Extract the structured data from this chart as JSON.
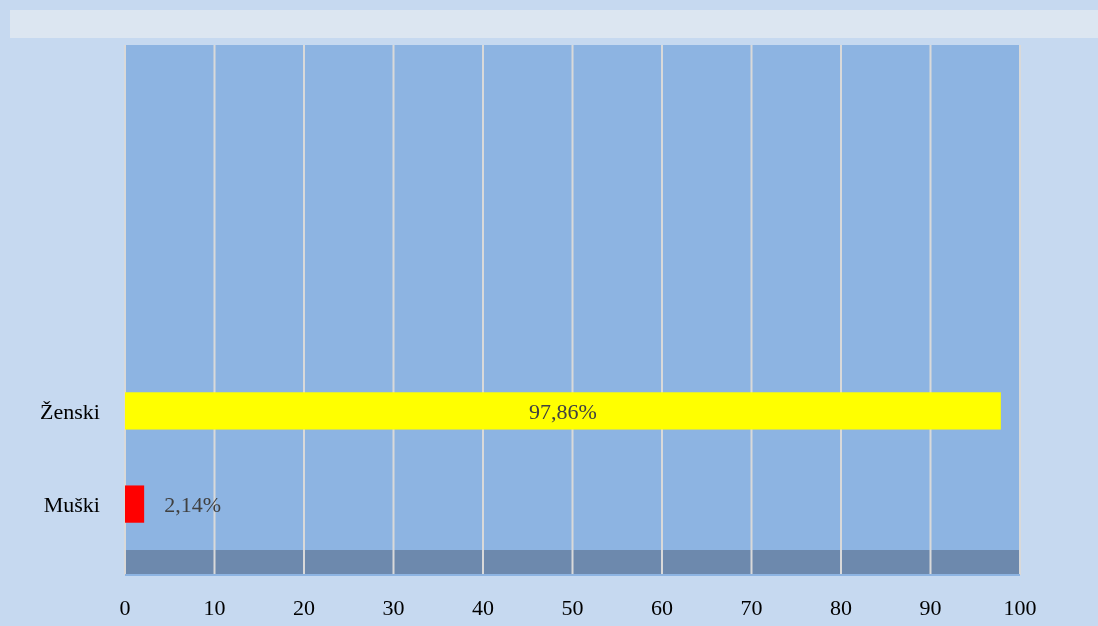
{
  "chart_data": {
    "type": "bar",
    "orientation": "horizontal",
    "categories": [
      "Ženski",
      "Muški"
    ],
    "values": [
      97.86,
      2.14
    ],
    "colors": [
      "#ffff00",
      "#ff0000"
    ],
    "value_labels": [
      "97,86%",
      "2,14%"
    ],
    "xlim": [
      0,
      100
    ],
    "xticks": [
      0,
      10,
      20,
      30,
      40,
      50,
      60,
      70,
      80,
      90,
      100
    ],
    "grid": "x"
  }
}
